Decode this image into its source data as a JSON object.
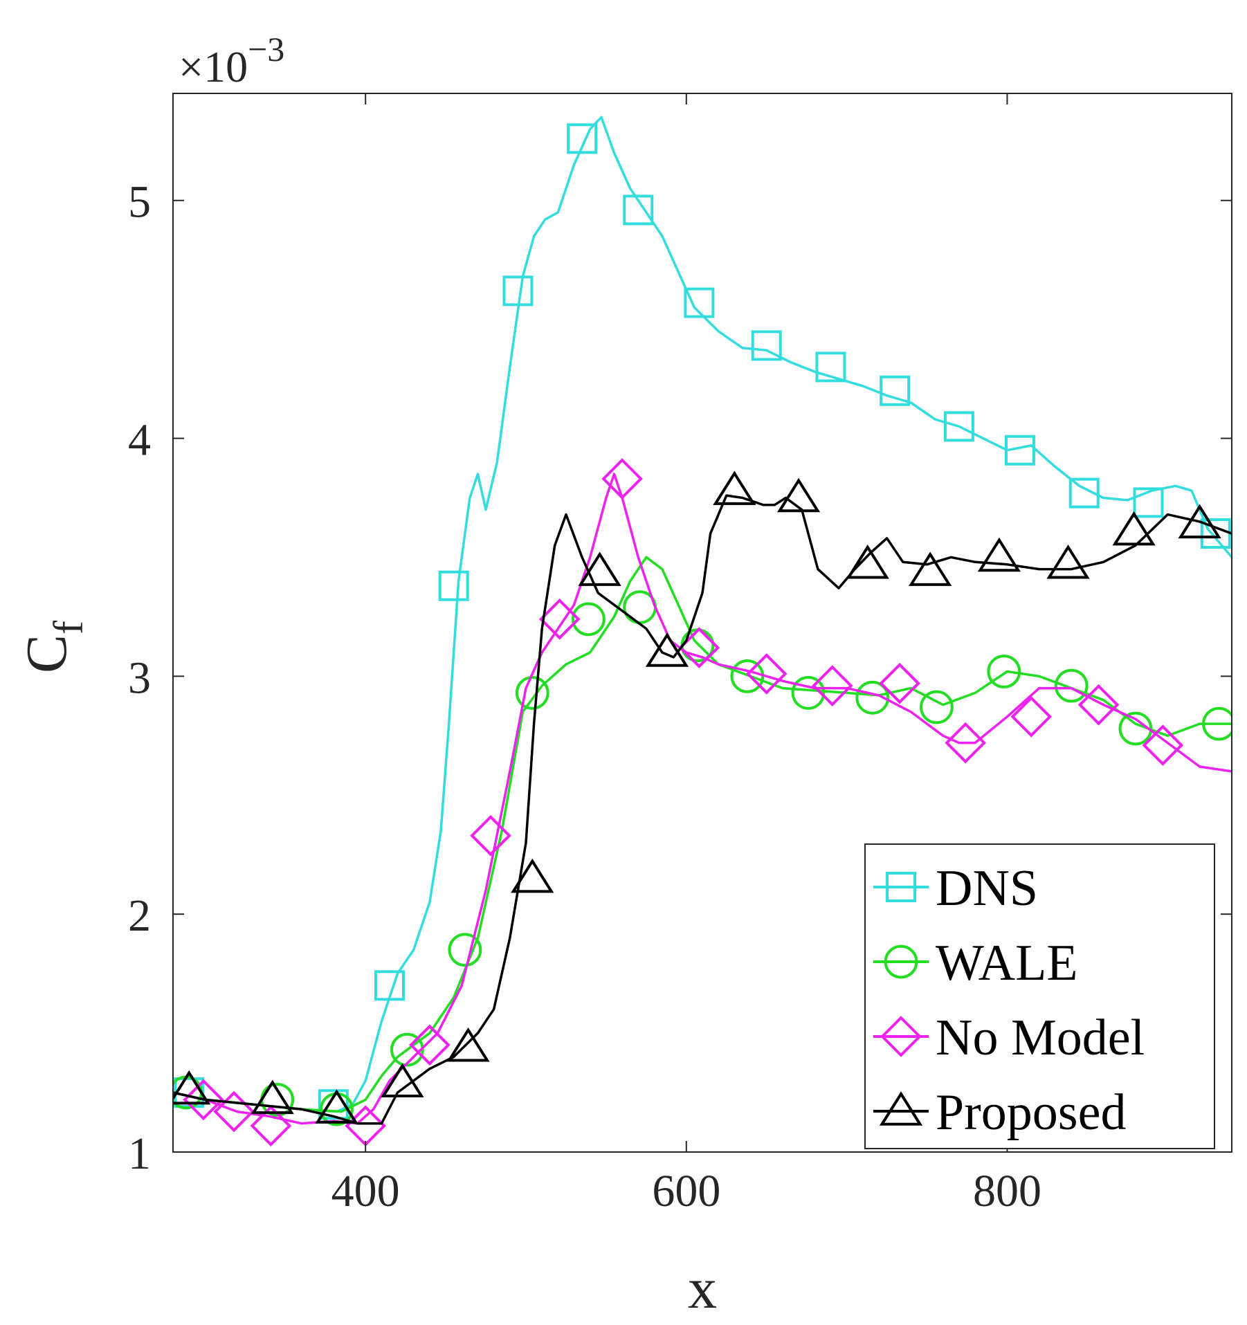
{
  "chart_data": {
    "type": "line",
    "title": "",
    "xlabel": "x",
    "ylabel": "C",
    "ylabel_subscript": "f",
    "y_exponent_prefix": "×10",
    "y_exponent_power": "−3",
    "xlim": [
      280,
      940
    ],
    "ylim": [
      1,
      5.45
    ],
    "x_ticks": [
      400,
      600,
      800
    ],
    "x_tick_labels": [
      "400",
      "600",
      "800"
    ],
    "y_ticks": [
      1,
      2,
      3,
      4,
      5
    ],
    "y_tick_labels": [
      "1",
      "2",
      "3",
      "4",
      "5"
    ],
    "grid": false,
    "legend_position": "bottom-right",
    "series": [
      {
        "name": "DNS",
        "color": "#33dddd",
        "marker": "square",
        "x": [
          280,
          300,
          330,
          360,
          382,
          392,
          400,
          410,
          420,
          430,
          440,
          447,
          452,
          458,
          465,
          470,
          475,
          482,
          490,
          498,
          505,
          512,
          520,
          530,
          540,
          547,
          555,
          565,
          575,
          585,
          595,
          605,
          620,
          635,
          650,
          665,
          680,
          695,
          710,
          725,
          740,
          755,
          770,
          785,
          800,
          815,
          830,
          845,
          860,
          875,
          890,
          905,
          915,
          925,
          940
        ],
        "y": [
          1.25,
          1.22,
          1.2,
          1.18,
          1.17,
          1.2,
          1.3,
          1.55,
          1.75,
          1.85,
          2.05,
          2.35,
          2.8,
          3.4,
          3.75,
          3.85,
          3.7,
          3.9,
          4.3,
          4.68,
          4.85,
          4.92,
          4.95,
          5.15,
          5.3,
          5.35,
          5.2,
          5.05,
          4.95,
          4.85,
          4.7,
          4.55,
          4.45,
          4.38,
          4.37,
          4.32,
          4.28,
          4.25,
          4.22,
          4.18,
          4.15,
          4.08,
          4.05,
          4.0,
          3.95,
          3.97,
          3.88,
          3.8,
          3.75,
          3.74,
          3.78,
          3.8,
          3.78,
          3.62,
          3.5
        ],
        "marker_x": [
          290,
          380,
          415,
          455,
          495,
          535,
          570,
          608,
          650,
          690,
          730,
          770,
          808,
          848,
          888,
          930
        ],
        "marker_y": [
          1.25,
          1.2,
          1.7,
          3.38,
          4.62,
          5.26,
          4.96,
          4.57,
          4.39,
          4.3,
          4.2,
          4.05,
          3.95,
          3.77,
          3.73,
          3.6
        ]
      },
      {
        "name": "WALE",
        "color": "#22dd22",
        "marker": "circle",
        "x": [
          280,
          300,
          330,
          360,
          385,
          400,
          410,
          420,
          430,
          440,
          455,
          470,
          485,
          498,
          510,
          525,
          540,
          555,
          565,
          575,
          585,
          595,
          605,
          620,
          640,
          660,
          680,
          700,
          720,
          740,
          760,
          780,
          800,
          820,
          840,
          860,
          880,
          900,
          920,
          940
        ],
        "y": [
          1.25,
          1.22,
          1.2,
          1.18,
          1.17,
          1.22,
          1.32,
          1.4,
          1.45,
          1.5,
          1.65,
          1.9,
          2.35,
          2.85,
          2.96,
          3.05,
          3.1,
          3.25,
          3.4,
          3.5,
          3.45,
          3.3,
          3.15,
          3.05,
          3.0,
          2.95,
          2.94,
          2.93,
          2.92,
          2.95,
          2.88,
          2.93,
          3.02,
          3.0,
          2.95,
          2.9,
          2.8,
          2.75,
          2.8,
          2.8
        ],
        "marker_x": [
          288,
          345,
          382,
          426,
          462,
          504,
          539,
          571,
          607,
          638,
          676,
          716,
          756,
          798,
          840,
          880,
          932
        ],
        "marker_y": [
          1.25,
          1.22,
          1.18,
          1.43,
          1.85,
          2.93,
          3.24,
          3.29,
          3.13,
          3.0,
          2.93,
          2.91,
          2.87,
          3.02,
          2.96,
          2.78,
          2.8
        ]
      },
      {
        "name": "No Model",
        "color": "#ee22ee",
        "marker": "diamond",
        "x": [
          280,
          300,
          320,
          340,
          360,
          380,
          395,
          405,
          415,
          430,
          445,
          460,
          475,
          490,
          500,
          510,
          520,
          530,
          540,
          550,
          555,
          560,
          570,
          580,
          590,
          600,
          610,
          620,
          640,
          660,
          680,
          700,
          720,
          740,
          760,
          770,
          780,
          800,
          820,
          840,
          860,
          880,
          900,
          920,
          940
        ],
        "y": [
          1.25,
          1.22,
          1.17,
          1.15,
          1.12,
          1.13,
          1.12,
          1.18,
          1.3,
          1.4,
          1.5,
          1.7,
          2.1,
          2.6,
          2.95,
          3.1,
          3.2,
          3.3,
          3.5,
          3.75,
          3.85,
          3.75,
          3.5,
          3.3,
          3.15,
          3.1,
          3.08,
          3.05,
          3.02,
          2.98,
          2.95,
          2.95,
          2.92,
          2.85,
          2.75,
          2.72,
          2.72,
          2.83,
          2.95,
          2.95,
          2.88,
          2.82,
          2.72,
          2.62,
          2.6
        ],
        "marker_x": [
          299,
          318,
          341,
          400,
          440,
          478,
          521,
          560,
          608,
          650,
          691,
          733,
          774,
          815,
          857,
          897
        ],
        "marker_y": [
          1.22,
          1.17,
          1.11,
          1.11,
          1.45,
          2.33,
          3.24,
          3.83,
          3.12,
          3.01,
          2.96,
          2.97,
          2.72,
          2.83,
          2.88,
          2.71
        ]
      },
      {
        "name": "Proposed",
        "color": "#000000",
        "marker": "triangle",
        "x": [
          280,
          300,
          330,
          360,
          380,
          395,
          410,
          420,
          430,
          440,
          455,
          470,
          480,
          490,
          500,
          505,
          510,
          518,
          525,
          535,
          545,
          555,
          565,
          575,
          585,
          592,
          600,
          610,
          615,
          625,
          635,
          648,
          655,
          662,
          672,
          682,
          695,
          705,
          715,
          725,
          735,
          750,
          765,
          780,
          800,
          820,
          840,
          860,
          880,
          900,
          920,
          940
        ],
        "y": [
          1.25,
          1.22,
          1.2,
          1.18,
          1.15,
          1.12,
          1.12,
          1.25,
          1.3,
          1.35,
          1.4,
          1.5,
          1.6,
          1.9,
          2.3,
          2.8,
          3.2,
          3.55,
          3.68,
          3.5,
          3.35,
          3.3,
          3.25,
          3.2,
          3.1,
          3.08,
          3.15,
          3.35,
          3.6,
          3.76,
          3.75,
          3.72,
          3.72,
          3.75,
          3.7,
          3.45,
          3.37,
          3.45,
          3.52,
          3.58,
          3.48,
          3.47,
          3.5,
          3.48,
          3.47,
          3.45,
          3.45,
          3.48,
          3.55,
          3.68,
          3.65,
          3.6
        ],
        "marker_x": [
          290,
          342,
          382,
          423,
          464,
          504,
          546,
          588,
          630,
          670,
          713,
          752,
          795,
          838,
          879,
          920
        ],
        "marker_y": [
          1.26,
          1.22,
          1.18,
          1.29,
          1.44,
          2.15,
          3.44,
          3.1,
          3.78,
          3.75,
          3.47,
          3.44,
          3.5,
          3.47,
          3.61,
          3.64
        ]
      }
    ]
  }
}
